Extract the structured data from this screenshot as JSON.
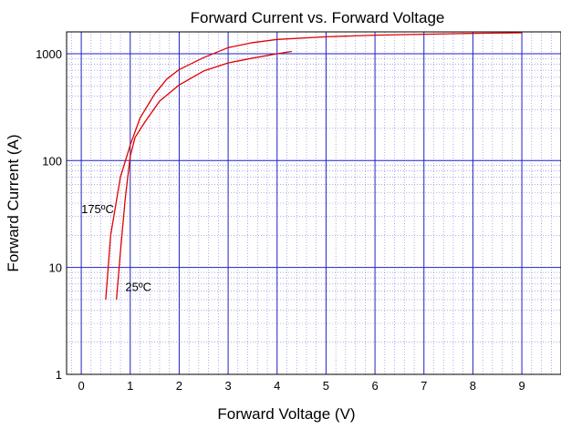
{
  "chart_data": {
    "type": "line",
    "title": "Forward Current vs. Forward Voltage",
    "xlabel": "Forward Voltage (V)",
    "ylabel": "Forward Current (A)",
    "x_scale": "linear",
    "y_scale": "log",
    "xlim": [
      -0.3,
      9.8
    ],
    "ylim": [
      1,
      1600
    ],
    "x_ticks": [
      0,
      1,
      2,
      3,
      4,
      5,
      6,
      7,
      8,
      9
    ],
    "y_ticks": [
      {
        "value": 1,
        "label": "1"
      },
      {
        "value": 10,
        "label": "10"
      },
      {
        "value": 100,
        "label": "100"
      },
      {
        "value": 1000,
        "label": "1000"
      }
    ],
    "grid": true,
    "minor_grid": true,
    "line_color": "#e00000",
    "grid_color": "#2020c8",
    "series": [
      {
        "x": [
          0.5,
          0.6,
          0.8,
          1.0,
          1.2,
          1.5,
          1.75,
          2.0,
          2.5,
          3.0,
          3.5,
          4.0,
          5.0,
          6.0,
          7.0,
          8.0,
          9.0
        ],
        "y": [
          5,
          20,
          70,
          140,
          250,
          420,
          580,
          710,
          920,
          1140,
          1270,
          1360,
          1440,
          1490,
          1520,
          1550,
          1570
        ]
      },
      {
        "x": [
          0.72,
          0.8,
          0.9,
          1.0,
          1.1,
          1.3,
          1.6,
          2.0,
          2.5,
          3.0,
          3.5,
          4.0,
          4.3
        ],
        "y": [
          5,
          14,
          45,
          110,
          165,
          230,
          360,
          510,
          690,
          820,
          910,
          1000,
          1050
        ]
      }
    ],
    "annotations": [
      {
        "text": "175ºC",
        "x": 0.0,
        "y": 35
      },
      {
        "text": "25ºC",
        "x": 0.9,
        "y": 6.5
      }
    ]
  }
}
